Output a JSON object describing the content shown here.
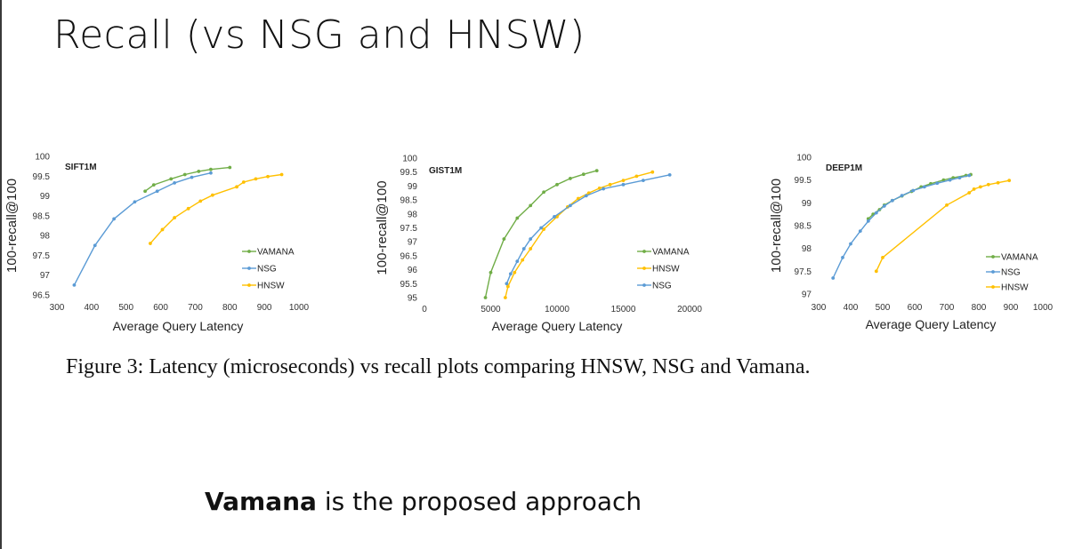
{
  "slide": {
    "title": "Recall (vs NSG and HNSW)",
    "caption": "Figure 3: Latency (microseconds) vs recall plots comparing HNSW, NSG and Vamana.",
    "footer_bold": "Vamana",
    "footer_rest": " is the proposed approach"
  },
  "colors": {
    "VAMANA": "#70ad47",
    "NSG": "#5b9bd5",
    "HNSW": "#ffc000"
  },
  "chart_data": [
    {
      "type": "line",
      "title": "SIFT1M",
      "xlabel": "Average Query Latency",
      "ylabel": "100-recall@100",
      "xlim": [
        300,
        1000
      ],
      "ylim": [
        96.5,
        100
      ],
      "xticks": [
        "300",
        "400",
        "500",
        "600",
        "700",
        "800",
        "900",
        "1000"
      ],
      "yticks": [
        "96.5",
        "97",
        "97.5",
        "98",
        "98.5",
        "99",
        "99.5",
        "100"
      ],
      "legend": "bottom-right",
      "series": [
        {
          "name": "VAMANA",
          "x": [
            555,
            580,
            630,
            670,
            710,
            745,
            800
          ],
          "y": [
            99.12,
            99.28,
            99.43,
            99.54,
            99.62,
            99.67,
            99.72
          ]
        },
        {
          "name": "NSG",
          "x": [
            350,
            410,
            465,
            525,
            590,
            640,
            690,
            745
          ],
          "y": [
            96.75,
            97.75,
            98.42,
            98.85,
            99.12,
            99.33,
            99.47,
            99.58
          ]
        },
        {
          "name": "HNSW",
          "x": [
            570,
            605,
            640,
            680,
            715,
            750,
            820,
            840,
            875,
            910,
            950
          ],
          "y": [
            97.8,
            98.15,
            98.45,
            98.68,
            98.87,
            99.02,
            99.23,
            99.35,
            99.43,
            99.49,
            99.54
          ]
        }
      ]
    },
    {
      "type": "line",
      "title": "GIST1M",
      "xlabel": "Average Query Latency",
      "ylabel": "100-recall@100",
      "xlim": [
        0,
        20000
      ],
      "ylim": [
        95,
        100
      ],
      "xticks": [
        "0",
        "5000",
        "10000",
        "15000",
        "20000"
      ],
      "yticks": [
        "95",
        "95.5",
        "96",
        "96.5",
        "97",
        "97.5",
        "98",
        "98.5",
        "99",
        "99.5",
        "100"
      ],
      "legend": "bottom-right",
      "series": [
        {
          "name": "VAMANA",
          "x": [
            4600,
            5000,
            6000,
            7000,
            8000,
            9000,
            10000,
            11000,
            12000,
            13000
          ],
          "y": [
            95,
            95.9,
            97.1,
            97.85,
            98.3,
            98.78,
            99.05,
            99.27,
            99.42,
            99.55
          ]
        },
        {
          "name": "HNSW",
          "x": [
            6100,
            6300,
            6800,
            7400,
            8000,
            9000,
            10000,
            10800,
            11600,
            12400,
            13200,
            14000,
            15000,
            16000,
            17200
          ],
          "y": [
            95,
            95.4,
            95.9,
            96.35,
            96.75,
            97.45,
            97.9,
            98.25,
            98.55,
            98.75,
            98.92,
            99.05,
            99.2,
            99.35,
            99.5
          ]
        },
        {
          "name": "NSG",
          "x": [
            6200,
            6500,
            7000,
            7500,
            8000,
            8800,
            9800,
            11000,
            12200,
            13500,
            15000,
            16500,
            18500
          ],
          "y": [
            95.5,
            95.85,
            96.3,
            96.75,
            97.1,
            97.5,
            97.9,
            98.3,
            98.65,
            98.9,
            99.05,
            99.2,
            99.4
          ]
        }
      ]
    },
    {
      "type": "line",
      "title": "DEEP1M",
      "xlabel": "Average Query Latency",
      "ylabel": "100-recall@100",
      "xlim": [
        300,
        1000
      ],
      "ylim": [
        97,
        100
      ],
      "xticks": [
        "300",
        "400",
        "500",
        "600",
        "700",
        "800",
        "900",
        "1000"
      ],
      "yticks": [
        "97",
        "97.5",
        "98",
        "98.5",
        "99",
        "99.5",
        "100"
      ],
      "legend": "bottom-right",
      "series": [
        {
          "name": "VAMANA",
          "x": [
            455,
            470,
            490,
            505,
            530,
            560,
            590,
            620,
            650,
            690,
            720,
            760,
            775
          ],
          "y": [
            98.65,
            98.75,
            98.85,
            98.95,
            99.05,
            99.15,
            99.25,
            99.35,
            99.42,
            99.5,
            99.55,
            99.6,
            99.62
          ]
        },
        {
          "name": "NSG",
          "x": [
            345,
            375,
            400,
            430,
            455,
            480,
            505,
            530,
            560,
            595,
            630,
            670,
            710,
            740,
            770
          ],
          "y": [
            97.35,
            97.8,
            98.1,
            98.38,
            98.6,
            98.78,
            98.93,
            99.05,
            99.16,
            99.27,
            99.35,
            99.43,
            99.5,
            99.55,
            99.6
          ]
        },
        {
          "name": "HNSW",
          "x": [
            480,
            500,
            700,
            770,
            785,
            805,
            830,
            860,
            895
          ],
          "y": [
            97.5,
            97.8,
            98.95,
            99.22,
            99.3,
            99.35,
            99.4,
            99.44,
            99.49
          ]
        }
      ]
    }
  ]
}
